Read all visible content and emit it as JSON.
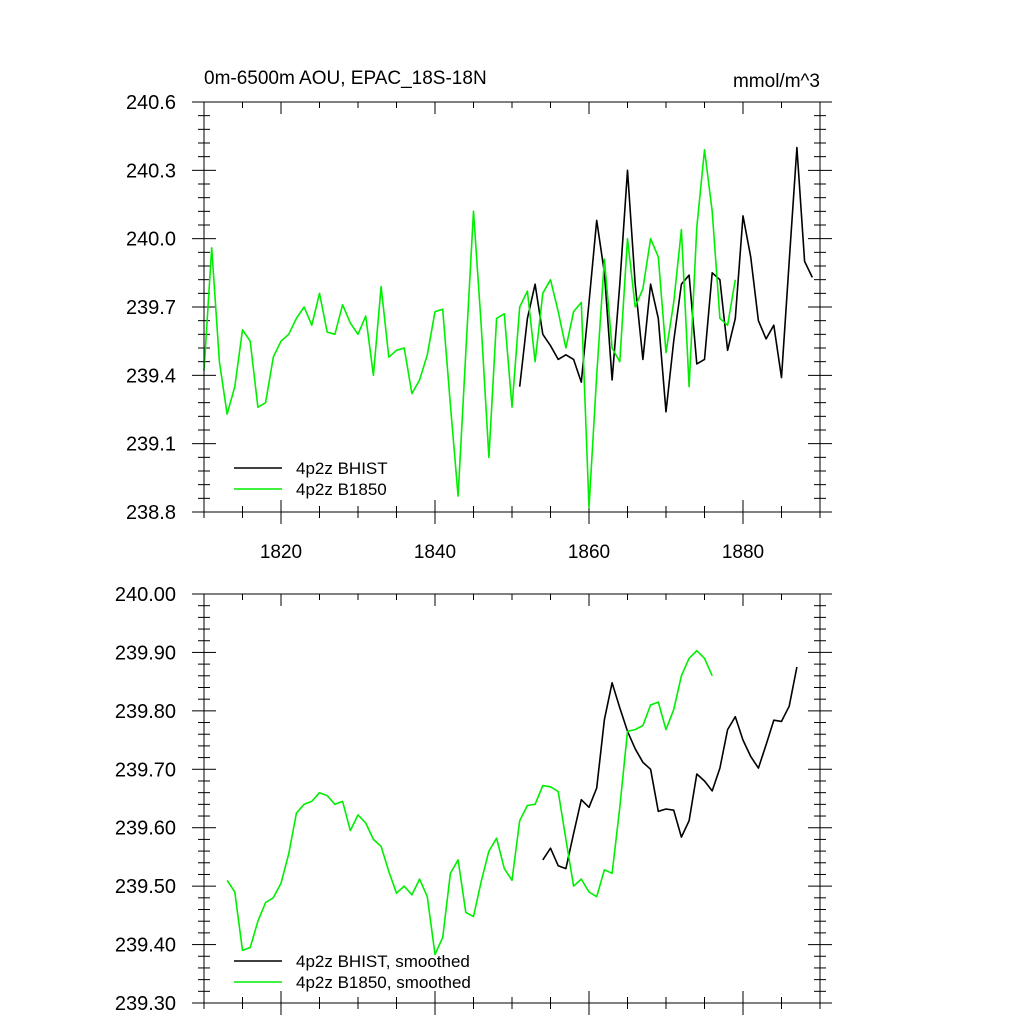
{
  "chart_data": [
    {
      "type": "line",
      "title": "0m-6500m AOU, EPAC_18S-18N",
      "units_label": "mmol/m^3",
      "xlabel": "",
      "ylabel": "",
      "xlim": [
        1810,
        1890
      ],
      "ylim": [
        238.8,
        240.6
      ],
      "x_ticks": [
        1820,
        1840,
        1860,
        1880
      ],
      "x_tick_labels": [
        "1820",
        "1840",
        "1860",
        "1880"
      ],
      "y_ticks": [
        238.8,
        239.1,
        239.4,
        239.7,
        240.0,
        240.3,
        240.6
      ],
      "y_tick_labels": [
        "238.8",
        "239.1",
        "239.4",
        "239.7",
        "240.0",
        "240.3",
        "240.6"
      ],
      "grid": false,
      "legend_position": "bottom-left",
      "series": [
        {
          "name": "4p2z BHIST",
          "color": "#000000",
          "x": [
            1851,
            1852,
            1853,
            1854,
            1855,
            1856,
            1857,
            1858,
            1859,
            1860,
            1861,
            1862,
            1863,
            1864,
            1865,
            1866,
            1867,
            1868,
            1869,
            1870,
            1871,
            1872,
            1873,
            1874,
            1875,
            1876,
            1877,
            1878,
            1879,
            1880,
            1881,
            1882,
            1883,
            1884,
            1885,
            1886,
            1887,
            1888,
            1889
          ],
          "values": [
            239.35,
            239.65,
            239.8,
            239.58,
            239.53,
            239.47,
            239.49,
            239.47,
            239.37,
            239.72,
            240.08,
            239.85,
            239.38,
            239.8,
            240.3,
            239.8,
            239.47,
            239.8,
            239.65,
            239.24,
            239.55,
            239.8,
            239.84,
            239.45,
            239.47,
            239.85,
            239.82,
            239.51,
            239.65,
            240.1,
            239.92,
            239.64,
            239.56,
            239.62,
            239.39,
            239.9,
            240.4,
            239.9,
            239.83
          ]
        },
        {
          "name": "4p2z B1850",
          "color": "#00ee00",
          "x": [
            1810,
            1811,
            1812,
            1813,
            1814,
            1815,
            1816,
            1817,
            1818,
            1819,
            1820,
            1821,
            1822,
            1823,
            1824,
            1825,
            1826,
            1827,
            1828,
            1829,
            1830,
            1831,
            1832,
            1833,
            1834,
            1835,
            1836,
            1837,
            1838,
            1839,
            1840,
            1841,
            1842,
            1843,
            1844,
            1845,
            1846,
            1847,
            1848,
            1849,
            1850,
            1851,
            1852,
            1853,
            1854,
            1855,
            1856,
            1857,
            1858,
            1859,
            1860,
            1861,
            1862,
            1863,
            1864,
            1865,
            1866,
            1867,
            1868,
            1869,
            1870,
            1871,
            1872,
            1873,
            1874,
            1875,
            1876,
            1877,
            1878,
            1879
          ],
          "values": [
            239.42,
            239.96,
            239.46,
            239.23,
            239.35,
            239.6,
            239.55,
            239.26,
            239.28,
            239.48,
            239.55,
            239.58,
            239.65,
            239.7,
            239.62,
            239.76,
            239.59,
            239.58,
            239.71,
            239.63,
            239.58,
            239.66,
            239.4,
            239.79,
            239.48,
            239.51,
            239.52,
            239.32,
            239.38,
            239.49,
            239.68,
            239.69,
            239.27,
            238.87,
            239.5,
            240.12,
            239.62,
            239.04,
            239.65,
            239.67,
            239.26,
            239.7,
            239.77,
            239.46,
            239.76,
            239.82,
            239.68,
            239.52,
            239.68,
            239.72,
            238.82,
            239.4,
            239.91,
            239.52,
            239.46,
            240.0,
            239.7,
            239.78,
            240.0,
            239.92,
            239.5,
            239.72,
            240.04,
            239.35,
            240.05,
            240.39,
            240.12,
            239.65,
            239.62,
            239.82
          ]
        }
      ]
    },
    {
      "type": "line",
      "title": "",
      "xlabel": "",
      "ylabel": "",
      "xlim": [
        1810,
        1890
      ],
      "ylim": [
        239.3,
        240.0
      ],
      "x_ticks": [
        1820,
        1840,
        1860,
        1880
      ],
      "x_tick_labels": [],
      "y_ticks": [
        239.3,
        239.4,
        239.5,
        239.6,
        239.7,
        239.8,
        239.9,
        240.0
      ],
      "y_tick_labels": [
        "239.30",
        "239.40",
        "239.50",
        "239.60",
        "239.70",
        "239.80",
        "239.90",
        "240.00"
      ],
      "grid": false,
      "legend_position": "bottom-left",
      "series": [
        {
          "name": "4p2z BHIST, smoothed",
          "color": "#000000",
          "x": [
            1854,
            1855,
            1856,
            1857,
            1858,
            1859,
            1860,
            1861,
            1862,
            1863,
            1864,
            1865,
            1866,
            1867,
            1868,
            1869,
            1870,
            1871,
            1872,
            1873,
            1874,
            1875,
            1876,
            1877,
            1878,
            1879,
            1880,
            1881,
            1882,
            1883,
            1884,
            1885,
            1886,
            1887
          ],
          "values": [
            239.545,
            239.565,
            239.535,
            239.53,
            239.59,
            239.648,
            239.635,
            239.668,
            239.785,
            239.848,
            239.805,
            239.765,
            239.735,
            239.712,
            239.7,
            239.628,
            239.632,
            239.63,
            239.584,
            239.612,
            239.692,
            239.68,
            239.663,
            239.702,
            239.768,
            239.79,
            239.75,
            239.722,
            239.702,
            239.742,
            239.784,
            239.782,
            239.808,
            239.875
          ]
        },
        {
          "name": "4p2z B1850, smoothed",
          "color": "#00ee00",
          "x": [
            1813,
            1814,
            1815,
            1816,
            1817,
            1818,
            1819,
            1820,
            1821,
            1822,
            1823,
            1824,
            1825,
            1826,
            1827,
            1828,
            1829,
            1830,
            1831,
            1832,
            1833,
            1834,
            1835,
            1836,
            1837,
            1838,
            1839,
            1840,
            1841,
            1842,
            1843,
            1844,
            1845,
            1846,
            1847,
            1848,
            1849,
            1850,
            1851,
            1852,
            1853,
            1854,
            1855,
            1856,
            1857,
            1858,
            1859,
            1860,
            1861,
            1862,
            1863,
            1864,
            1865,
            1866,
            1867,
            1868,
            1869,
            1870,
            1871,
            1872,
            1873,
            1874,
            1875,
            1876
          ],
          "values": [
            239.51,
            239.49,
            239.39,
            239.395,
            239.44,
            239.472,
            239.48,
            239.505,
            239.555,
            239.625,
            239.64,
            239.645,
            239.66,
            239.655,
            239.64,
            239.645,
            239.595,
            239.622,
            239.608,
            239.58,
            239.568,
            239.525,
            239.488,
            239.5,
            239.485,
            239.512,
            239.482,
            239.383,
            239.412,
            239.522,
            239.545,
            239.455,
            239.448,
            239.508,
            239.56,
            239.582,
            239.53,
            239.51,
            239.612,
            239.638,
            239.64,
            239.672,
            239.67,
            239.662,
            239.58,
            239.5,
            239.512,
            239.49,
            239.482,
            239.528,
            239.522,
            239.635,
            239.765,
            239.768,
            239.775,
            239.81,
            239.815,
            239.768,
            239.802,
            239.86,
            239.89,
            239.903,
            239.89,
            239.86
          ]
        }
      ]
    }
  ]
}
